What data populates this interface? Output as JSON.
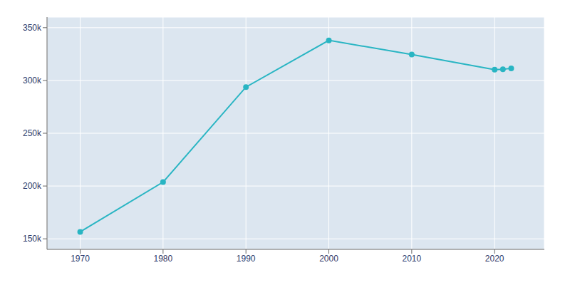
{
  "chart_data": {
    "type": "line",
    "x": [
      1970,
      1980,
      1990,
      2000,
      2010,
      2020,
      2021,
      2022
    ],
    "values": [
      156601,
      203713,
      293742,
      337977,
      324528,
      310227,
      310600,
      311495
    ],
    "color": "#29b5c3",
    "marker": "circle",
    "xlim": [
      1966,
      2026
    ],
    "xticks": [
      1970,
      1980,
      1990,
      2000,
      2010,
      2020
    ],
    "ylim": [
      140000,
      360000
    ],
    "yticks": [
      {
        "value": 150000,
        "label": "150k"
      },
      {
        "value": 200000,
        "label": "200k"
      },
      {
        "value": 250000,
        "label": "250k"
      },
      {
        "value": 300000,
        "label": "300k"
      },
      {
        "value": 350000,
        "label": "350k"
      }
    ],
    "grid": true
  }
}
